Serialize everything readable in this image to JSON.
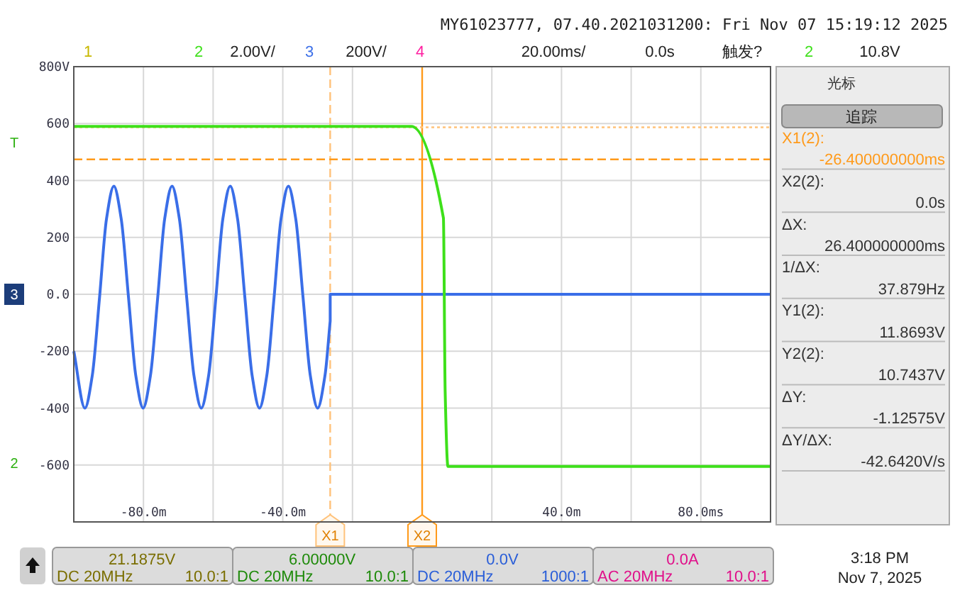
{
  "chart_data": [
    {
      "type": "line",
      "title": "MY61023777, 07.40.2021031200: Fri Nov 07 15:19:12 2025",
      "annotations": [
        "1",
        "2",
        "2.00V/",
        "3",
        "200V/",
        "4",
        "20.00ms/",
        "0.0s",
        "触发?",
        "2",
        "10.8V",
        "T",
        "3",
        "2"
      ],
      "xlim": [
        -100,
        100
      ],
      "xticks": [
        {
          "value": -100,
          "label": null
        },
        {
          "value": -80,
          "label": "-80.0m"
        },
        {
          "value": -60,
          "label": null
        },
        {
          "value": -40,
          "label": "-40.0m"
        },
        {
          "value": -20,
          "label": null
        },
        {
          "value": 0,
          "label": null
        },
        {
          "value": 20,
          "label": null
        },
        {
          "value": 40,
          "label": "40.0m"
        },
        {
          "value": 60,
          "label": null
        },
        {
          "value": 80,
          "label": "80.0ms"
        },
        {
          "value": 100,
          "label": null
        }
      ],
      "ylim": [
        -800,
        800
      ],
      "yticks": [
        {
          "value": -800,
          "label": null
        },
        {
          "value": -600,
          "label": "-600"
        },
        {
          "value": -400,
          "label": "-400"
        },
        {
          "value": -200,
          "label": "-200"
        },
        {
          "value": 0,
          "label": "0.0"
        },
        200,
        400,
        600,
        {
          "value": 800,
          "label": "800V"
        }
      ],
      "grid": true,
      "line_style": "solid",
      "ref_lines": [
        {
          "axis": "x",
          "value": -26.4,
          "label": "X1",
          "color": "#ffc27a",
          "line_style": "dashed"
        },
        {
          "axis": "x",
          "value": 0,
          "label": "X2",
          "color": "#ff9a1a",
          "line_style": "solid"
        },
        {
          "axis": "y",
          "value": 587,
          "color": "#ffc27a",
          "line_style": "dotted"
        },
        {
          "axis": "y",
          "value": 474,
          "color": "#ff9a1a",
          "line_style": "dashed"
        }
      ],
      "series": [
        {
          "color": "#3a6ee8",
          "x": [
            -100,
            -96.8,
            -94.7,
            -92.6,
            -90.6,
            -88.5,
            -86.4,
            -84.3,
            -82.2,
            -80.1,
            -78.0,
            -75.9,
            -73.9,
            -71.8,
            -69.7,
            -67.6,
            -65.5,
            -63.4,
            -61.3,
            -59.2,
            -57.2,
            -55.1,
            -53.0,
            -50.9,
            -48.8,
            -46.7,
            -44.6,
            -42.5,
            -40.5,
            -38.4,
            -36.3,
            -34.2,
            -32.1,
            -30.0,
            -27.9,
            -26.4,
            -26.4,
            100
          ],
          "values": [
            -200,
            -400,
            -286,
            -10,
            266,
            380,
            266,
            -10,
            -286,
            -400,
            -286,
            -10,
            266,
            380,
            266,
            -10,
            -286,
            -400,
            -286,
            -10,
            266,
            380,
            266,
            -10,
            -286,
            -400,
            -286,
            -10,
            266,
            380,
            266,
            -10,
            -286,
            -400,
            -286,
            -94,
            0,
            0
          ]
        },
        {
          "color": "#3ee01a",
          "x": [
            -100,
            -3.1,
            6.1,
            6.6,
            7.4,
            100
          ],
          "values": [
            590,
            590,
            268,
            -340,
            -605,
            -605
          ]
        }
      ]
    },
    {
      "type": "other",
      "annotations": [
        "光标",
        "追踪",
        "X1(2):",
        "-26.400000000ms",
        "X2(2):",
        "0.0s",
        "ΔX:",
        "26.400000000ms",
        "1/ΔX:",
        "37.879Hz",
        "Y1(2):",
        "11.8693V",
        "Y2(2):",
        "10.7437V",
        "ΔY:",
        "-1.12575V",
        "ΔY/ΔX:",
        "-42.6420V/s"
      ]
    },
    {
      "type": "other",
      "annotations": [
        "21.1875V",
        "DC 20MHz",
        "10.0:1",
        "6.00000V",
        "DC 20MHz",
        "10.0:1",
        "0.0V",
        "DC 20MHz",
        "1000:1",
        "0.0A",
        "AC 20MHz",
        "10.0:1",
        "3:18 PM",
        "Nov 7, 2025"
      ]
    }
  ]
}
